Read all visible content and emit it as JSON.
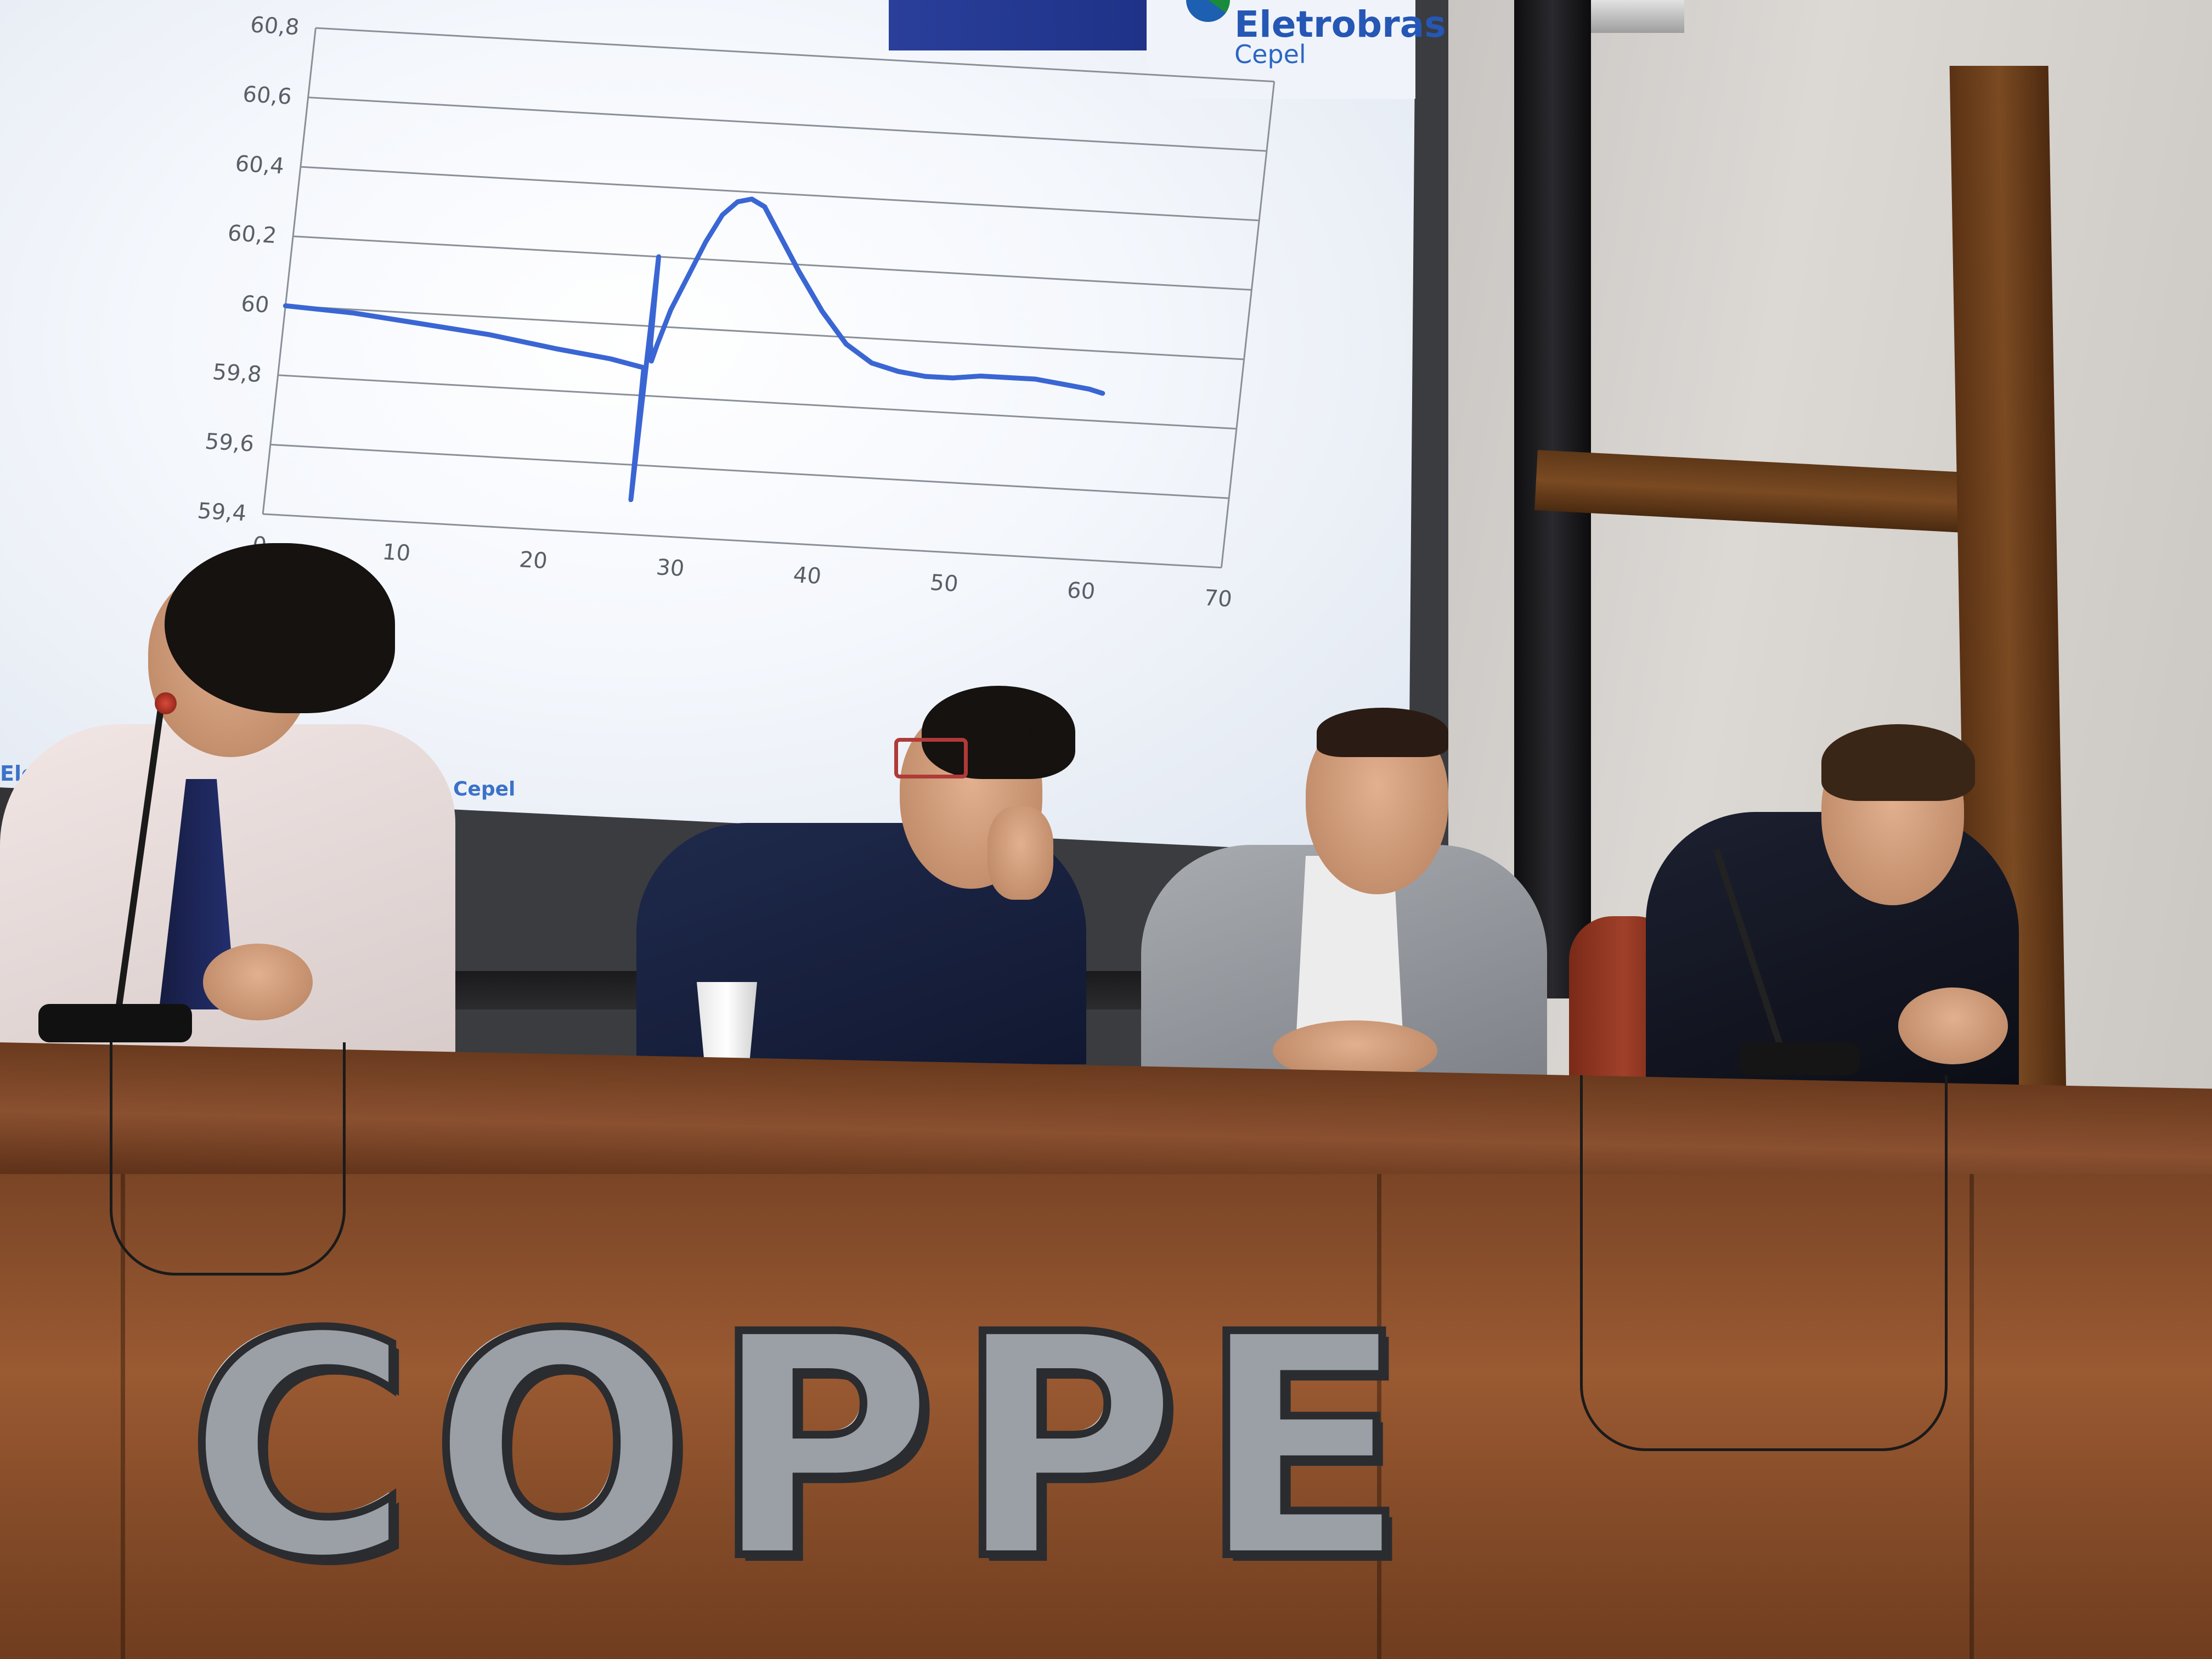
{
  "slide": {
    "logo_line1": "Eletrobras",
    "logo_line2": "Cepel",
    "footer_left": "Electri",
    "footer_right": "Cepel"
  },
  "chart_data": {
    "type": "line",
    "title": "",
    "xlabel": "",
    "ylabel": "",
    "xlim": [
      0,
      70
    ],
    "ylim": [
      59.4,
      60.8
    ],
    "x_ticks": [
      "0",
      "10",
      "20",
      "30",
      "40",
      "50",
      "60",
      "70"
    ],
    "y_ticks": [
      "59,4",
      "59,6",
      "59,8",
      "60",
      "60,2",
      "60,4",
      "60,6",
      "60,8"
    ],
    "grid": true,
    "legend": "none",
    "series": [
      {
        "color": "#3a66d4",
        "x": [
          0,
          5,
          10,
          15,
          20,
          24,
          26.5,
          26.6,
          26.7,
          26.8,
          27.0,
          27.3,
          28,
          30,
          31,
          32,
          33,
          34,
          35,
          37,
          39,
          41,
          43,
          45,
          47,
          49,
          51,
          53,
          55,
          57,
          59,
          60
        ],
        "y": [
          60.0,
          59.99,
          59.97,
          59.95,
          59.92,
          59.9,
          59.88,
          59.5,
          60.2,
          59.95,
          59.9,
          59.95,
          60.05,
          60.25,
          60.33,
          60.37,
          60.38,
          60.36,
          60.3,
          60.18,
          60.07,
          59.98,
          59.93,
          59.91,
          59.9,
          59.9,
          59.91,
          59.91,
          59.91,
          59.9,
          59.89,
          59.88
        ]
      }
    ]
  },
  "desk": {
    "letters": [
      "C",
      "O",
      "P",
      "P",
      "E"
    ]
  }
}
